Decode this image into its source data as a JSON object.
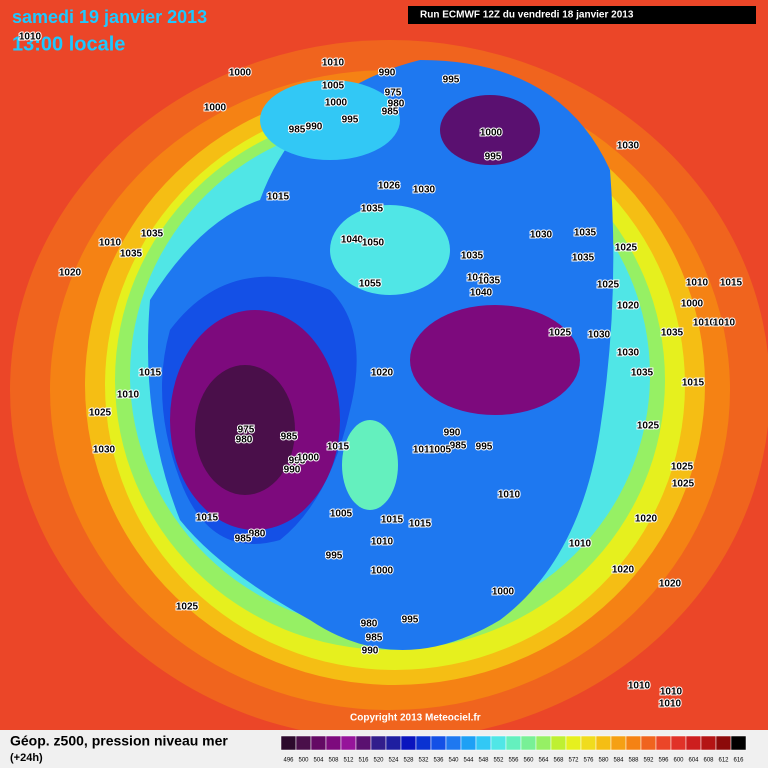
{
  "header": {
    "date": "samedi 19 janvier 2013",
    "time": "13:00 locale",
    "run": "Run ECMWF 12Z du vendredi 18 janvier 2013"
  },
  "footer": {
    "title": "Géop. z500, pression niveau mer",
    "lead": "(+24h)",
    "copyright": "Copyright 2013 Meteociel.fr"
  },
  "colorbar": {
    "values": [
      496,
      500,
      504,
      508,
      512,
      516,
      520,
      524,
      528,
      532,
      536,
      540,
      544,
      548,
      552,
      556,
      560,
      564,
      568,
      572,
      576,
      580,
      584,
      588,
      592,
      596,
      600,
      604,
      608,
      612,
      616
    ],
    "colors": [
      "#2d0a2d",
      "#4a0f4a",
      "#640a64",
      "#7d0a7d",
      "#96149a",
      "#5a1070",
      "#321e8c",
      "#1e1ea0",
      "#0a14be",
      "#0a32d2",
      "#1450e6",
      "#1e78f0",
      "#1ea0f5",
      "#32c8f5",
      "#50e6e6",
      "#64f0be",
      "#78f096",
      "#96f064",
      "#bef032",
      "#e6f01e",
      "#f0dc1e",
      "#f5be14",
      "#f5a014",
      "#f58214",
      "#f0641e",
      "#eb4628",
      "#e13228",
      "#cd1e1e",
      "#b41414",
      "#8c0a0a",
      "#000000"
    ]
  },
  "isobar_labels": [
    "1010",
    "1000",
    "1010",
    "990",
    "995",
    "1005",
    "975",
    "980",
    "1000",
    "985",
    "1000",
    "995",
    "985",
    "990",
    "1000",
    "995",
    "1030",
    "1026",
    "1030",
    "1015",
    "1035",
    "1035",
    "1010",
    "1035",
    "1040",
    "1050",
    "1030",
    "1035",
    "1025",
    "1020",
    "1035",
    "1040",
    "1035",
    "1040",
    "1035",
    "1055",
    "1025",
    "1010",
    "1015",
    "1000",
    "1020",
    "1010",
    "1010",
    "1025",
    "1030",
    "1035",
    "1030",
    "1015",
    "1020",
    "1035",
    "1015",
    "1010",
    "1025",
    "1025",
    "990",
    "975",
    "985",
    "980",
    "995",
    "985",
    "1015",
    "1010",
    "1005",
    "990",
    "995",
    "1000",
    "1030",
    "1025",
    "1025",
    "1010",
    "1015",
    "1005",
    "1015",
    "1015",
    "1020",
    "980",
    "985",
    "1010",
    "1010",
    "995",
    "1000",
    "1020",
    "1020",
    "1000",
    "1025",
    "995",
    "980",
    "985",
    "990",
    "1010",
    "1010",
    "1010"
  ]
}
